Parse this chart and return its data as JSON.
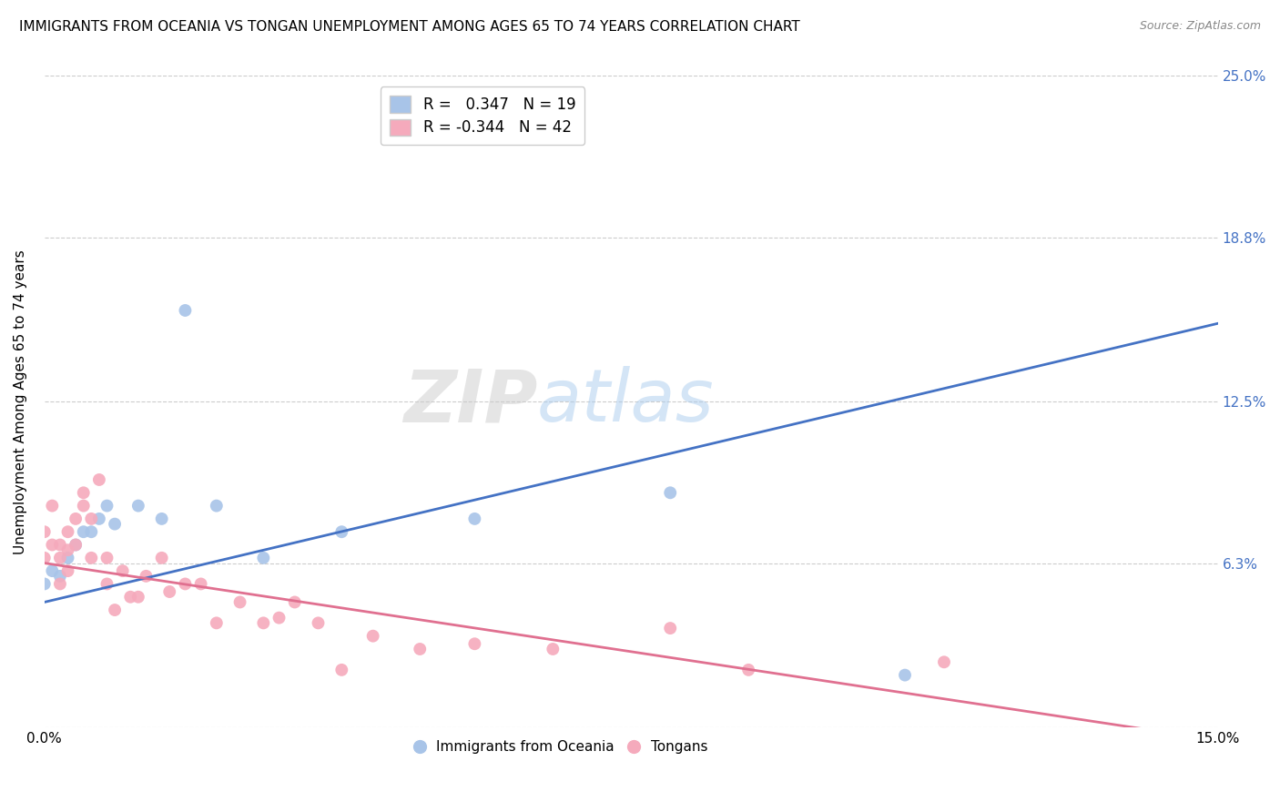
{
  "title": "IMMIGRANTS FROM OCEANIA VS TONGAN UNEMPLOYMENT AMONG AGES 65 TO 74 YEARS CORRELATION CHART",
  "source": "Source: ZipAtlas.com",
  "ylabel": "Unemployment Among Ages 65 to 74 years",
  "xlabel": "",
  "xlim": [
    0.0,
    0.15
  ],
  "ylim": [
    0.0,
    0.25
  ],
  "ytick_vals": [
    0.0,
    0.063,
    0.125,
    0.188,
    0.25
  ],
  "ytick_labels_right": [
    "",
    "6.3%",
    "12.5%",
    "18.8%",
    "25.0%"
  ],
  "xtick_vals": [
    0.0,
    0.05,
    0.1,
    0.15
  ],
  "xtick_labels": [
    "0.0%",
    "",
    "",
    "15.0%"
  ],
  "blue_R": 0.347,
  "blue_N": 19,
  "pink_R": -0.344,
  "pink_N": 42,
  "blue_color": "#a8c4e8",
  "pink_color": "#f5aabc",
  "blue_line_color": "#4472c4",
  "pink_line_color": "#e07090",
  "watermark_zip": "ZIP",
  "watermark_atlas": "atlas",
  "grid_color": "#cccccc",
  "background_color": "#ffffff",
  "title_fontsize": 11,
  "axis_label_fontsize": 11,
  "tick_fontsize": 11,
  "right_tick_color": "#4472c4",
  "marker_size": 100,
  "blue_points_x": [
    0.0,
    0.001,
    0.002,
    0.003,
    0.004,
    0.005,
    0.006,
    0.007,
    0.008,
    0.009,
    0.012,
    0.015,
    0.018,
    0.022,
    0.028,
    0.038,
    0.055,
    0.08,
    0.11
  ],
  "blue_points_y": [
    0.055,
    0.06,
    0.058,
    0.065,
    0.07,
    0.075,
    0.075,
    0.08,
    0.085,
    0.078,
    0.085,
    0.08,
    0.16,
    0.085,
    0.065,
    0.075,
    0.08,
    0.09,
    0.02
  ],
  "pink_points_x": [
    0.0,
    0.0,
    0.001,
    0.001,
    0.002,
    0.002,
    0.002,
    0.003,
    0.003,
    0.003,
    0.004,
    0.004,
    0.005,
    0.005,
    0.006,
    0.006,
    0.007,
    0.008,
    0.008,
    0.009,
    0.01,
    0.011,
    0.012,
    0.013,
    0.015,
    0.016,
    0.018,
    0.02,
    0.022,
    0.025,
    0.028,
    0.03,
    0.032,
    0.035,
    0.038,
    0.042,
    0.048,
    0.055,
    0.065,
    0.08,
    0.09,
    0.115
  ],
  "pink_points_y": [
    0.065,
    0.075,
    0.07,
    0.085,
    0.065,
    0.07,
    0.055,
    0.068,
    0.075,
    0.06,
    0.07,
    0.08,
    0.09,
    0.085,
    0.065,
    0.08,
    0.095,
    0.055,
    0.065,
    0.045,
    0.06,
    0.05,
    0.05,
    0.058,
    0.065,
    0.052,
    0.055,
    0.055,
    0.04,
    0.048,
    0.04,
    0.042,
    0.048,
    0.04,
    0.022,
    0.035,
    0.03,
    0.032,
    0.03,
    0.038,
    0.022,
    0.025
  ]
}
